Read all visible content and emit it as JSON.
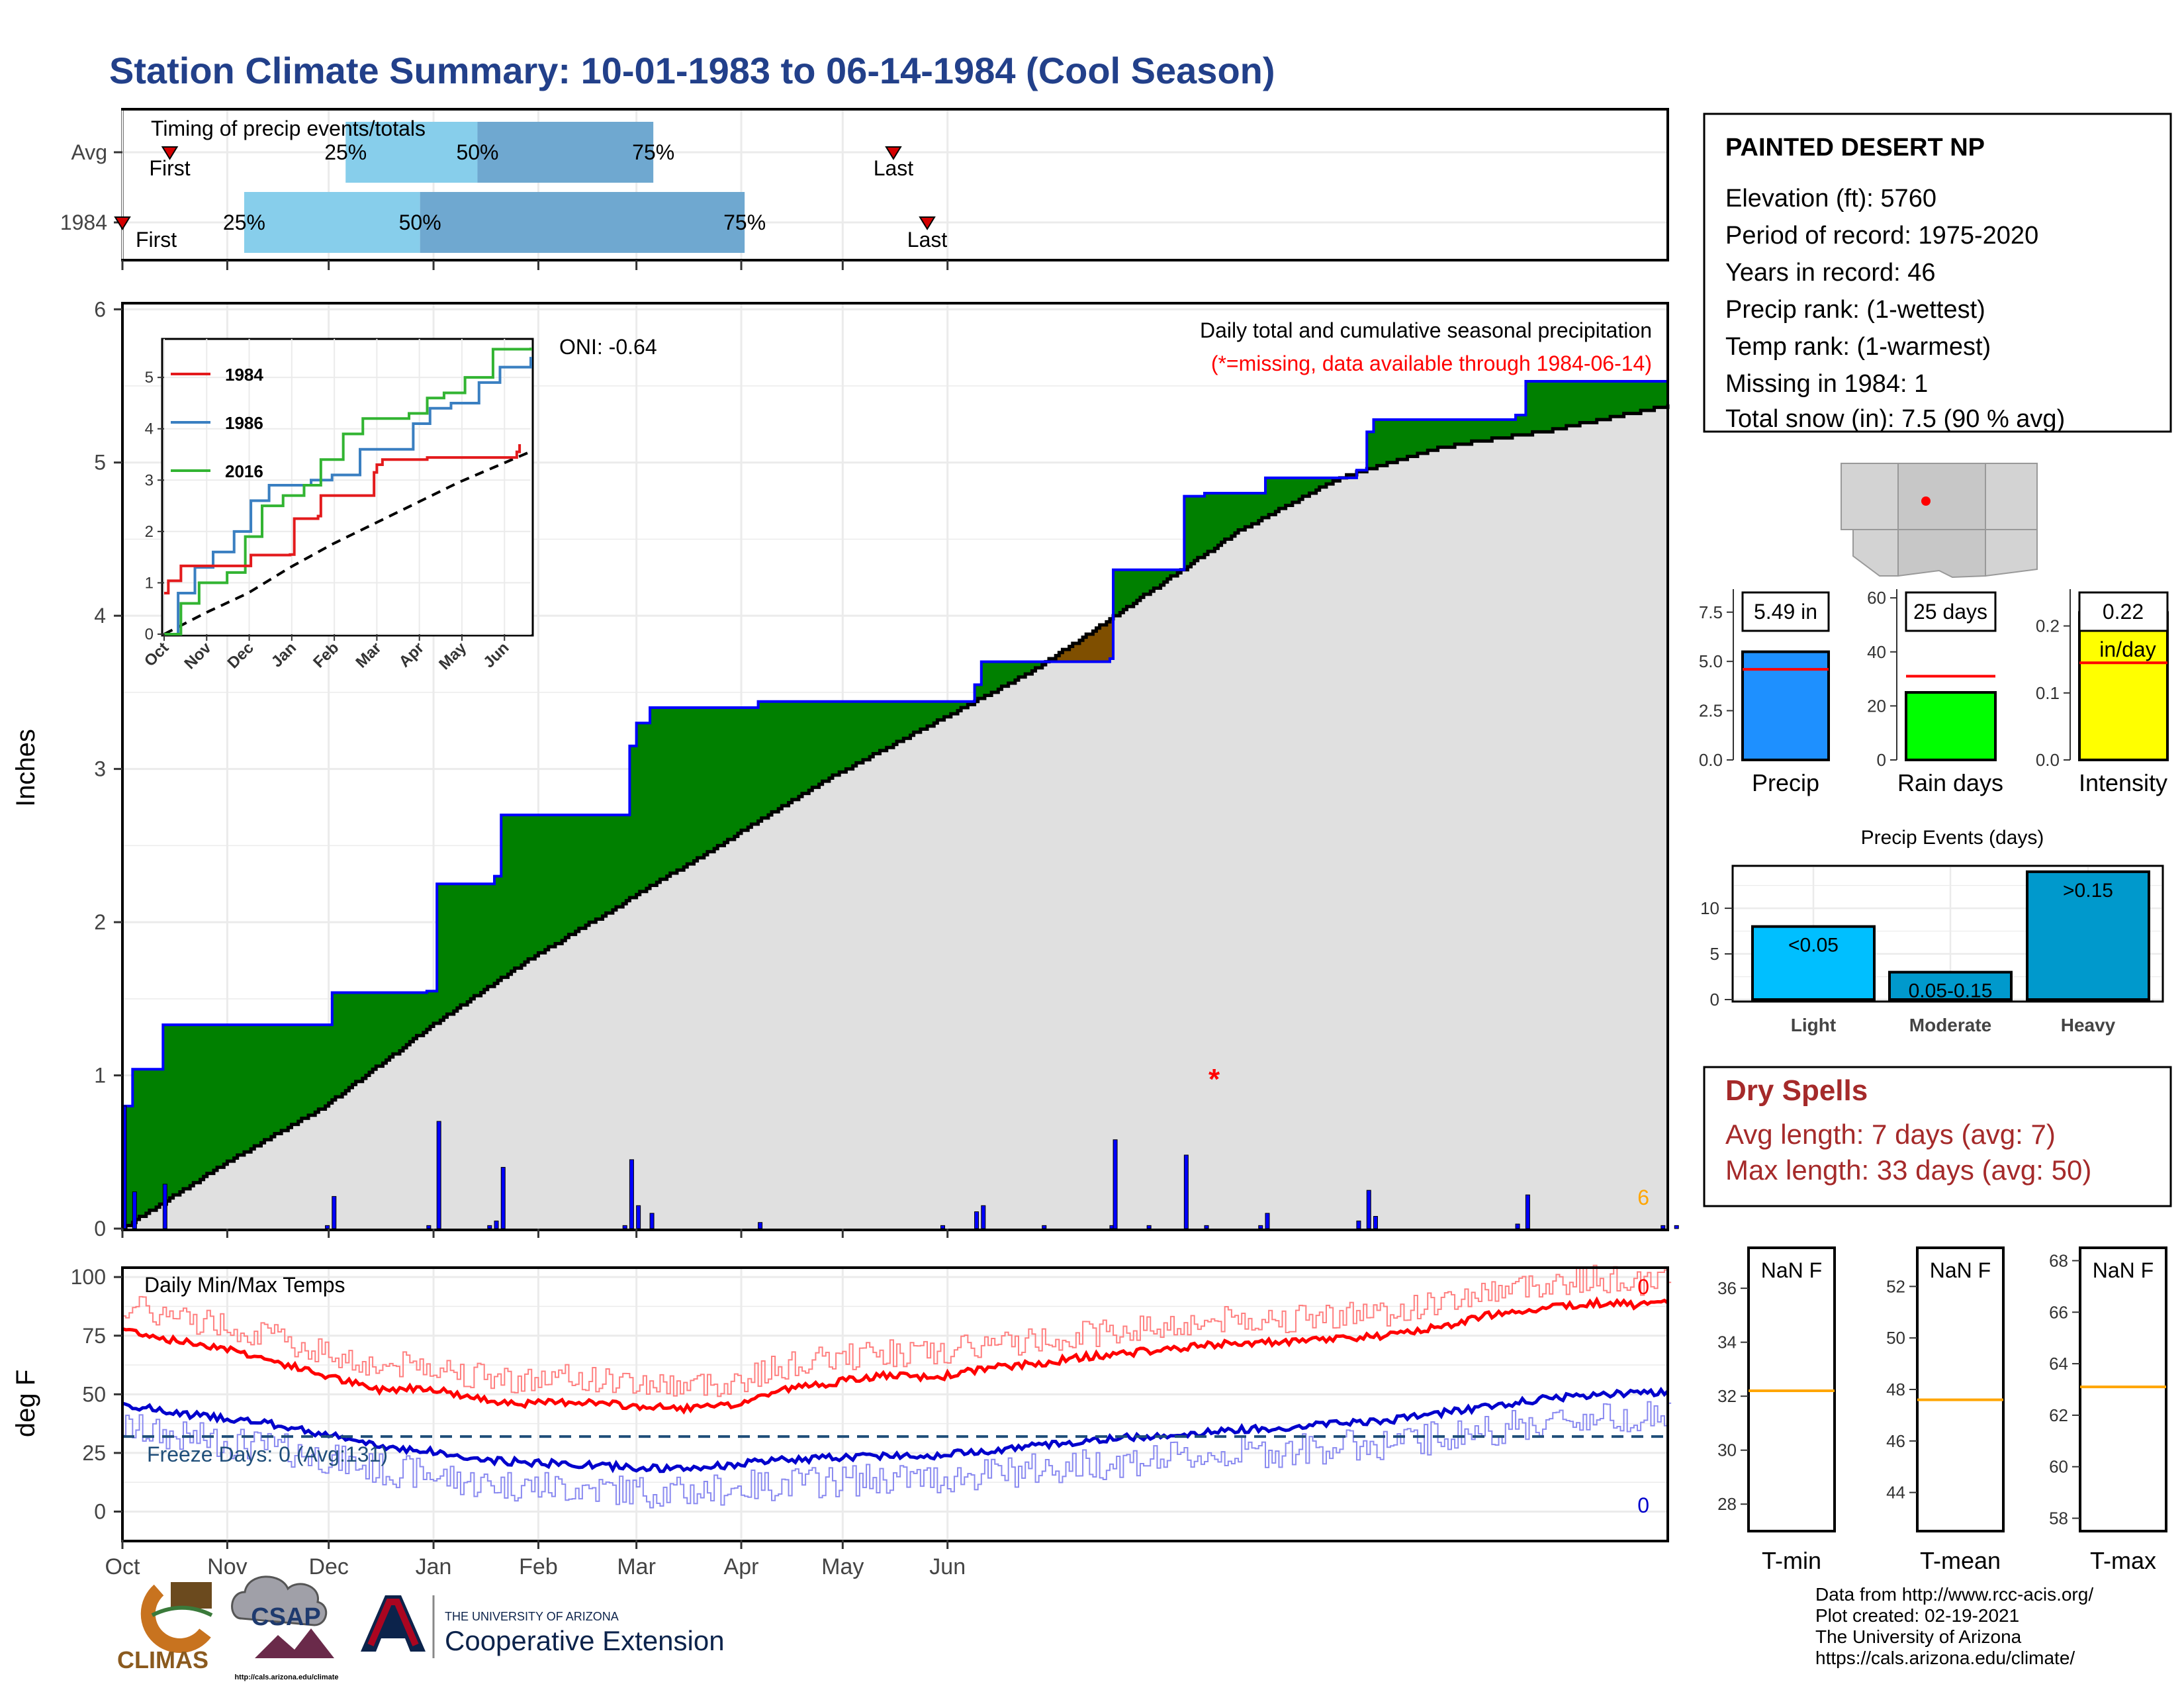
{
  "header": {
    "title": "Station Climate Summary: 10-01-1983 to 06-14-1984 (Cool Season)"
  },
  "colors": {
    "title_blue": "#22408a",
    "light_blue": "#87ceeb",
    "mid_blue": "#6fa8d0",
    "above_fill": "#008000",
    "below_fill": "#7f4f00",
    "avg_fill": "#e0e0e0",
    "precip_bar": "#0000ff",
    "red": "#ff0000",
    "dry_spell": "#a52a2a",
    "orange": "#ffa500"
  },
  "timing": {
    "title": "Timing of precip events/totals",
    "rows": [
      {
        "label": "Avg",
        "p25": "25%",
        "p50": "50%",
        "p75": "75%",
        "first": "First",
        "last": "Last",
        "first_day": 14,
        "p25_day": 66,
        "p50_day": 105,
        "p75_day": 157,
        "last_day": 228
      },
      {
        "label": "1984",
        "p25": "25%",
        "p50": "50%",
        "p75": "75%",
        "first": "First",
        "last": "Last",
        "first_day": 0,
        "p25_day": 36,
        "p50_day": 88,
        "p75_day": 184,
        "last_day": 238
      }
    ]
  },
  "station": {
    "name": "PAINTED DESERT NP",
    "lines": [
      "Elevation (ft): 5760",
      "Period of record: 1975-2020",
      "Years in record: 46",
      "Precip rank:  (1-wettest)",
      "Temp rank:  (1-warmest)",
      "Missing in 1984: 1",
      "Total snow (in): 7.5 (90 % avg)"
    ]
  },
  "main_precip": {
    "ylabel": "Inches",
    "yticks": [
      "0",
      "1",
      "2",
      "3",
      "4",
      "5",
      "6"
    ],
    "caption": "Daily total and cumulative seasonal precipitation",
    "missing_note": "(*=missing, data available through 1984-06-14)",
    "oni": "ONI: -0.64",
    "missing_marker": "*",
    "corner_label": "6"
  },
  "inset": {
    "legend": [
      "1984",
      "1986",
      "2016"
    ],
    "yticks": [
      "0",
      "1",
      "2",
      "3",
      "4",
      "5"
    ],
    "xticks": [
      "Oct",
      "Nov",
      "Dec",
      "Jan",
      "Feb",
      "Mar",
      "Apr",
      "May",
      "Jun"
    ]
  },
  "temps": {
    "title": "Daily Min/Max Temps",
    "ylabel": "deg F",
    "yticks": [
      "0",
      "25",
      "50",
      "75",
      "100"
    ],
    "freeze_label": "Freeze Days: 0 (Avg:131)",
    "max_count": "0",
    "min_count": "0"
  },
  "xaxis": {
    "months": [
      "Oct",
      "Nov",
      "Dec",
      "Jan",
      "Feb",
      "Mar",
      "Apr",
      "May",
      "Jun"
    ]
  },
  "side_bars": [
    {
      "label": "Precip",
      "value_text": "5.49 in",
      "yticks": [
        "0.0",
        "2.5",
        "5.0",
        "7.5"
      ],
      "color": "#1e90ff"
    },
    {
      "label": "Rain days",
      "value_text": "25 days",
      "yticks": [
        "0",
        "20",
        "40",
        "60"
      ],
      "color": "#00ff00"
    },
    {
      "label": "Intensity",
      "value_text": "0.22",
      "value_text2": "in/day",
      "yticks": [
        "0.0",
        "0.1",
        "0.2"
      ],
      "color": "#ffff00"
    }
  ],
  "events": {
    "title": "Precip Events (days)",
    "yticks": [
      "0",
      "5",
      "10"
    ],
    "bars": [
      {
        "label": "Light",
        "value_text": "<0.05"
      },
      {
        "label": "Moderate",
        "value_text": "0.05-0.15"
      },
      {
        "label": "Heavy",
        "value_text": ">0.15"
      }
    ]
  },
  "dry_spells": {
    "title": "Dry Spells",
    "avg": "Avg length: 7 days (avg: 7)",
    "max": "Max length: 33 days (avg: 50)"
  },
  "temp_boxes": [
    {
      "label": "T-min",
      "value_text": "NaN F",
      "yticks": [
        "28",
        "30",
        "32",
        "34",
        "36"
      ]
    },
    {
      "label": "T-mean",
      "value_text": "NaN F",
      "yticks": [
        "44",
        "46",
        "48",
        "50",
        "52"
      ]
    },
    {
      "label": "T-max",
      "value_text": "NaN F",
      "yticks": [
        "58",
        "60",
        "62",
        "64",
        "66",
        "68"
      ]
    }
  ],
  "credits": {
    "lines": [
      "Data from http://www.rcc-acis.org/",
      "Plot created: 02-19-2021",
      "The University of Arizona",
      "https://cals.arizona.edu/climate/"
    ]
  },
  "logos": {
    "climas": "CLIMAS",
    "csap": "CSAP",
    "csap_url": "http://cals.arizona.edu/climate",
    "ua_top": "THE UNIVERSITY OF ARIZONA",
    "ua_bottom": "Cooperative Extension"
  },
  "chart_data": [
    {
      "type": "line",
      "x_unit": "day of season (Oct 1 = 0)",
      "ylabel": "Inches",
      "ylim": [
        0,
        6
      ],
      "series": [
        {
          "values_1984": [
            [
              0,
              0.8
            ],
            [
              3,
              1.04
            ],
            [
              12,
              1.33
            ],
            [
              60,
              1.33
            ],
            [
              62,
              1.54
            ],
            [
              90,
              1.55
            ],
            [
              93,
              2.25
            ],
            [
              108,
              2.25
            ],
            [
              110,
              2.3
            ],
            [
              112,
              2.7
            ],
            [
              148,
              2.7
            ],
            [
              150,
              3.15
            ],
            [
              152,
              3.3
            ],
            [
              156,
              3.4
            ],
            [
              188,
              3.44
            ],
            [
              242,
              3.44
            ],
            [
              252,
              3.55
            ],
            [
              254,
              3.7
            ],
            [
              272,
              3.7
            ],
            [
              292,
              3.72
            ],
            [
              293,
              4.3
            ],
            [
              303,
              4.3
            ],
            [
              314,
              4.78
            ],
            [
              320,
              4.8
            ],
            [
              336,
              4.8
            ],
            [
              338,
              4.9
            ],
            [
              365,
              4.95
            ],
            [
              368,
              5.2
            ],
            [
              370,
              5.28
            ],
            [
              412,
              5.31
            ],
            [
              415,
              5.53
            ],
            [
              455,
              5.53
            ],
            [
              459,
              5.49
            ]
          ]
        },
        {
          "values_avg": [
            [
              0,
              0
            ],
            [
              30,
              0.42
            ],
            [
              60,
              0.8
            ],
            [
              90,
              1.3
            ],
            [
              120,
              1.75
            ],
            [
              150,
              2.15
            ],
            [
              180,
              2.55
            ],
            [
              210,
              2.95
            ],
            [
              240,
              3.3
            ],
            [
              270,
              3.65
            ],
            [
              300,
              4.1
            ],
            [
              330,
              4.55
            ],
            [
              360,
              4.9
            ],
            [
              390,
              5.1
            ],
            [
              420,
              5.2
            ],
            [
              459,
              5.38
            ]
          ]
        }
      ]
    },
    {
      "type": "bar",
      "title": "Precip",
      "value": 5.49,
      "average": 4.6,
      "ylim": [
        0,
        8.5
      ]
    },
    {
      "type": "bar",
      "title": "Rain days",
      "value": 25,
      "average": 31,
      "ylim": [
        0,
        62
      ]
    },
    {
      "type": "bar",
      "title": "Intensity",
      "value": 0.22,
      "average": 0.145,
      "ylim": [
        0,
        0.25
      ]
    },
    {
      "type": "bar",
      "title": "Precip Events (days)",
      "categories": [
        "Light",
        "Moderate",
        "Heavy"
      ],
      "values": [
        8,
        3,
        14
      ],
      "ylim": [
        0,
        14.5
      ]
    },
    {
      "type": "line",
      "title": "Daily Min/Max Temps",
      "ylabel": "deg F",
      "ylim": [
        -10,
        105
      ],
      "series": [
        {
          "values_max_knots": [
            [
              0,
              78
            ],
            [
              15,
              73
            ],
            [
              30,
              70
            ],
            [
              45,
              64
            ],
            [
              60,
              58
            ],
            [
              75,
              52
            ],
            [
              90,
              53
            ],
            [
              105,
              48
            ],
            [
              120,
              46
            ],
            [
              135,
              47
            ],
            [
              150,
              45
            ],
            [
              165,
              44
            ],
            [
              180,
              45
            ],
            [
              195,
              52
            ],
            [
              210,
              55
            ],
            [
              225,
              58
            ],
            [
              240,
              57
            ],
            [
              255,
              61
            ],
            [
              270,
              63
            ],
            [
              285,
              66
            ],
            [
              300,
              68
            ],
            [
              315,
              70
            ],
            [
              330,
              72
            ],
            [
              345,
              72
            ],
            [
              360,
              74
            ],
            [
              375,
              75
            ],
            [
              390,
              79
            ],
            [
              405,
              84
            ],
            [
              420,
              87
            ],
            [
              435,
              89
            ],
            [
              450,
              88
            ],
            [
              459,
              91
            ]
          ]
        },
        {
          "values_min_knots": [
            [
              0,
              46
            ],
            [
              15,
              42
            ],
            [
              30,
              40
            ],
            [
              45,
              37
            ],
            [
              60,
              33
            ],
            [
              75,
              28
            ],
            [
              90,
              26
            ],
            [
              105,
              22
            ],
            [
              120,
              21
            ],
            [
              135,
              20
            ],
            [
              150,
              19
            ],
            [
              165,
              18
            ],
            [
              180,
              20
            ],
            [
              195,
              22
            ],
            [
              210,
              23
            ],
            [
              225,
              24
            ],
            [
              240,
              24
            ],
            [
              255,
              26
            ],
            [
              270,
              28
            ],
            [
              285,
              30
            ],
            [
              300,
              32
            ],
            [
              315,
              33
            ],
            [
              330,
              35
            ],
            [
              345,
              36
            ],
            [
              360,
              38
            ],
            [
              375,
              39
            ],
            [
              390,
              42
            ],
            [
              405,
              45
            ],
            [
              420,
              48
            ],
            [
              435,
              50
            ],
            [
              450,
              51
            ],
            [
              459,
              51
            ]
          ]
        },
        {
          "values_freeze": 32
        }
      ]
    }
  ]
}
